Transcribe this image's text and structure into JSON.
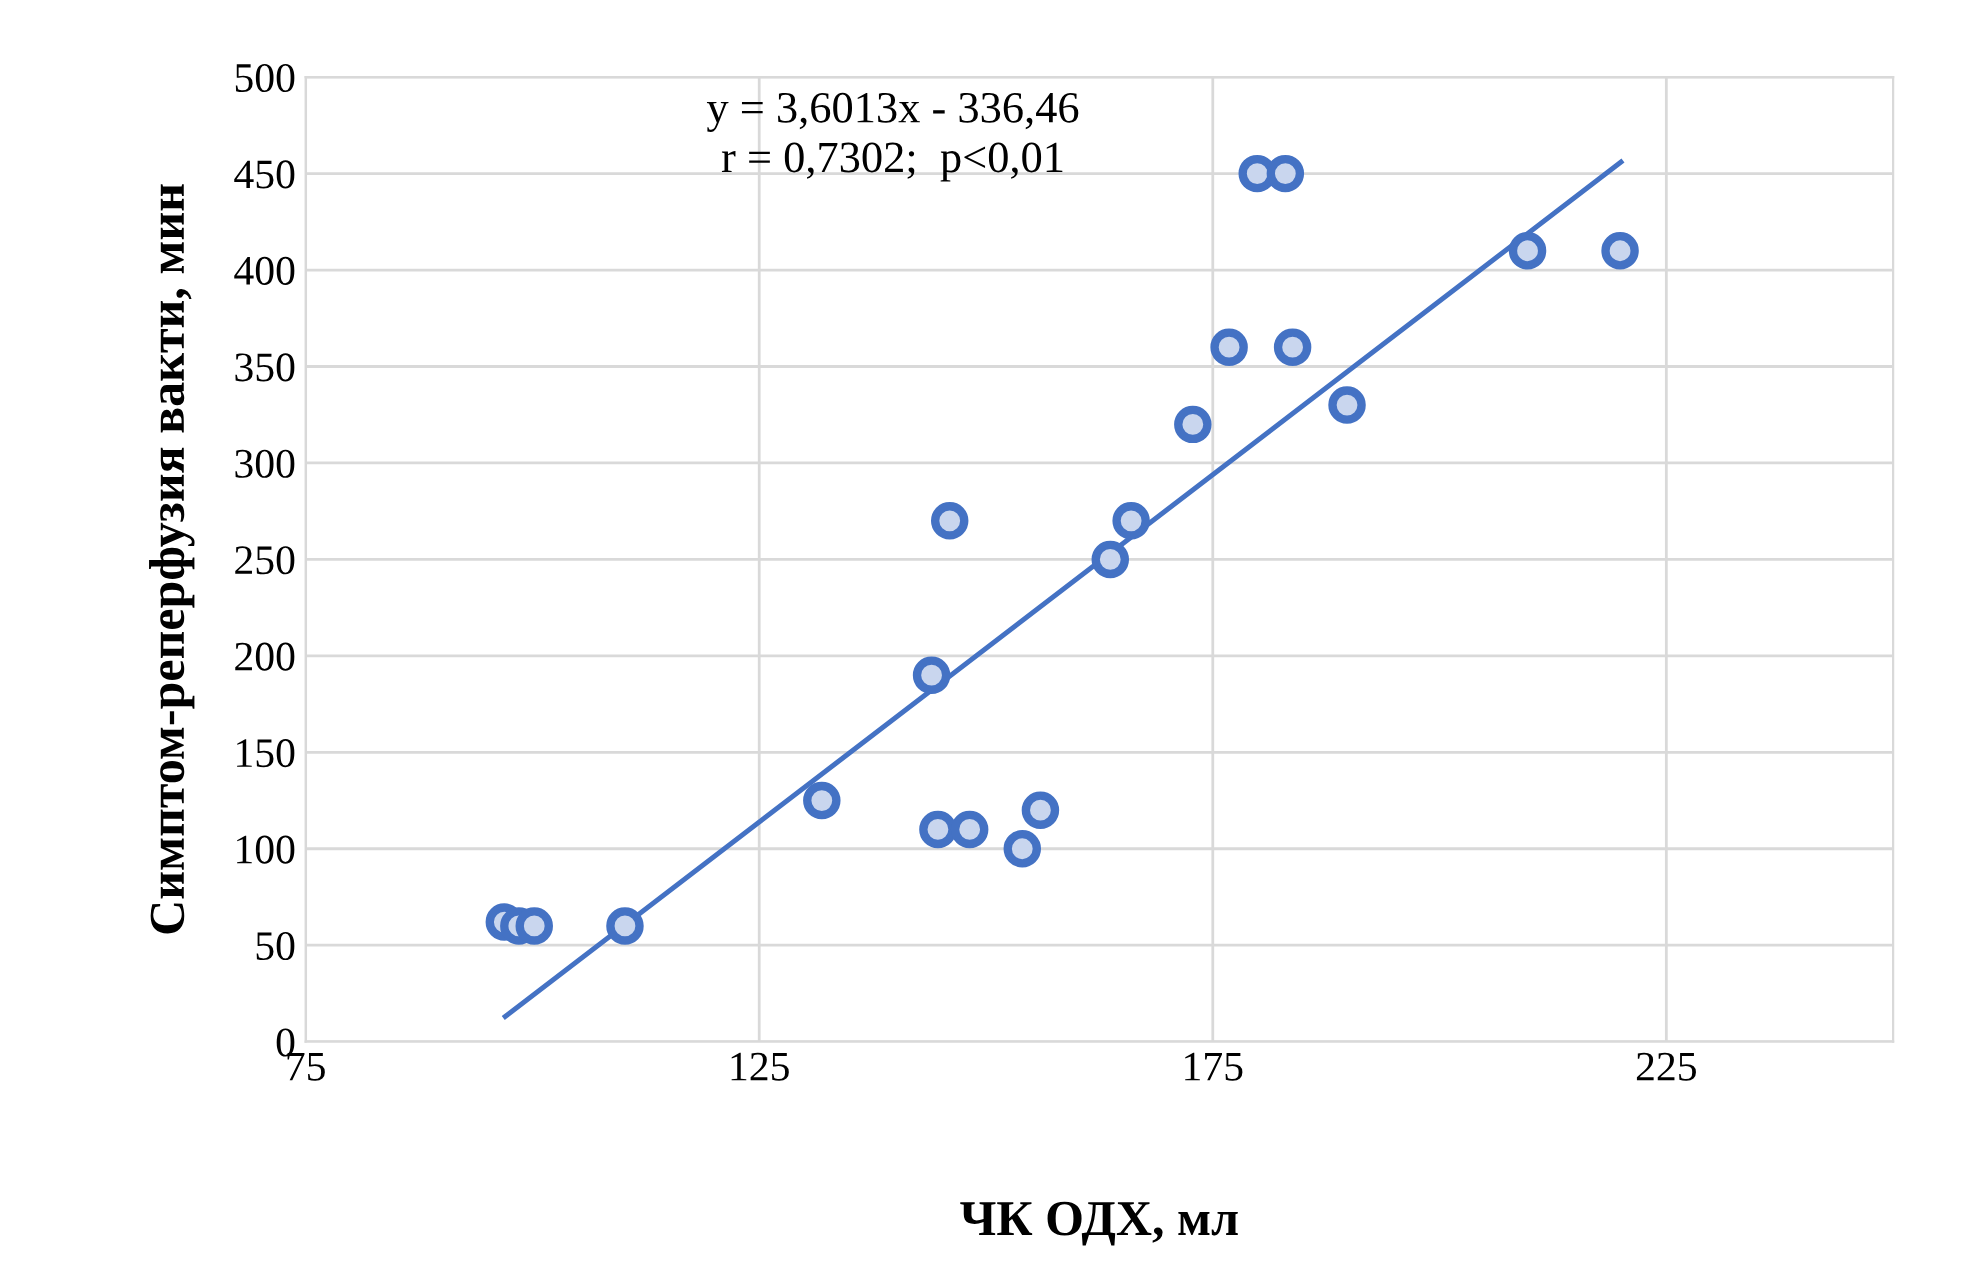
{
  "chart_data": {
    "type": "scatter",
    "xlabel": "ЧК ОДХ, мл",
    "ylabel": "Симптом-реперфузия вакти, мин",
    "annotations": [
      "y = 3,6013x - 336,46\nr = 0,7302;  p<0,01"
    ],
    "xlim": [
      75,
      250
    ],
    "xticks": [
      75,
      125,
      175,
      225
    ],
    "ylim": [
      0,
      500
    ],
    "yticks": [
      0,
      50,
      100,
      150,
      200,
      250,
      300,
      350,
      400,
      450,
      500
    ],
    "grid": true,
    "legend": false,
    "series": [
      {
        "marker": "circle",
        "color": "#4472c4",
        "x": [
          96.9,
          98.5,
          100.2,
          110.2,
          131.9,
          144,
          144.7,
          148.2,
          146,
          154,
          156,
          163.7,
          166,
          172.8,
          176.8,
          179.9,
          183,
          183.8,
          189.8,
          209.7,
          219.9
        ],
        "values": [
          62,
          60,
          60,
          60,
          125,
          190,
          110,
          110,
          270,
          100,
          120,
          250,
          270,
          320,
          360,
          450,
          450,
          360,
          330,
          410,
          410
        ]
      },
      {
        "type": "line",
        "marker": "none",
        "color": "#4472c4",
        "line_style": "solid",
        "x": [
          97,
          220
        ],
        "values": [
          13,
          456
        ]
      }
    ]
  }
}
